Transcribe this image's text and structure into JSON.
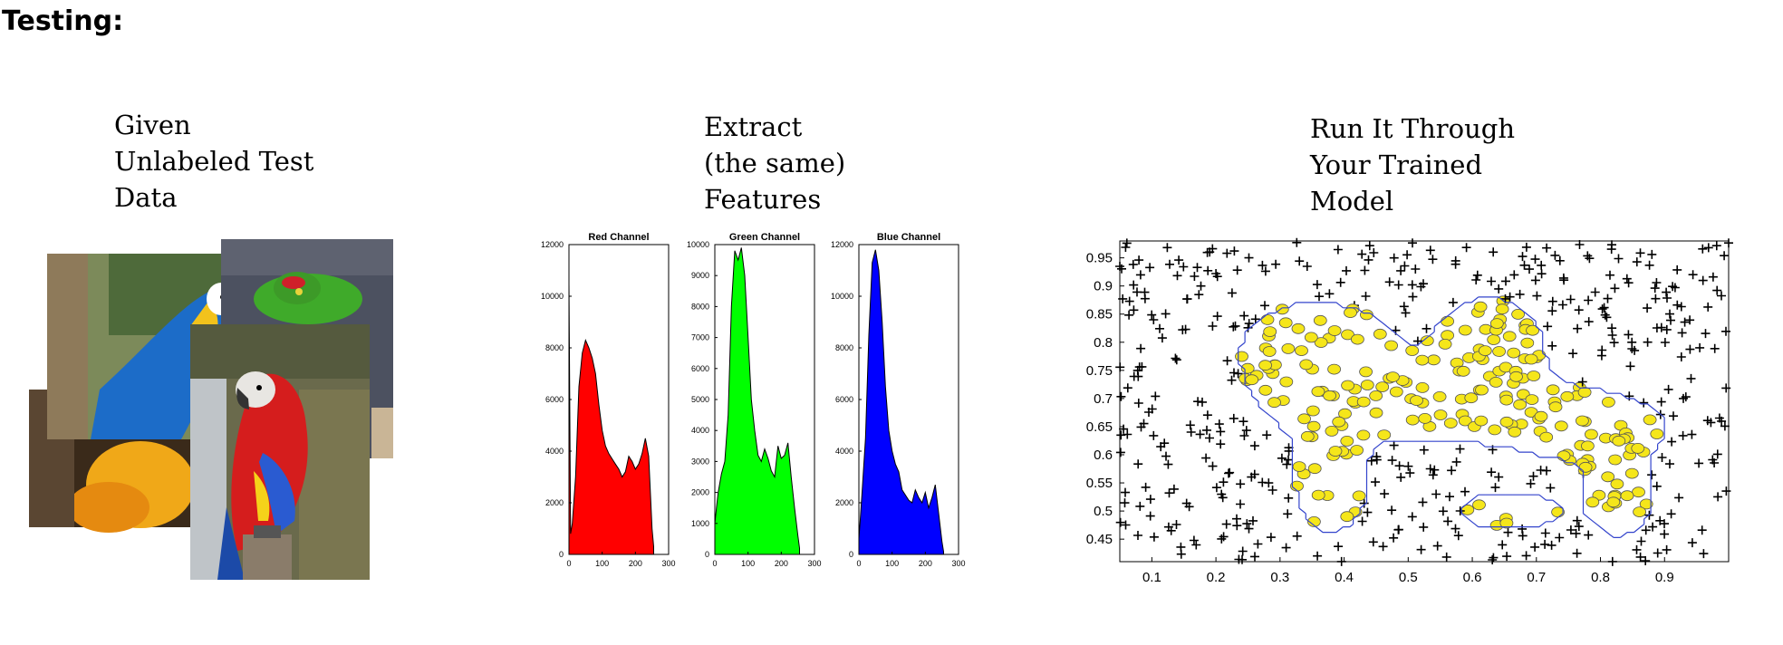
{
  "title": "Testing:",
  "steps": [
    {
      "lines": [
        "Given",
        "Unlabeled Test",
        "Data"
      ]
    },
    {
      "lines": [
        "Extract",
        "(the same)",
        "Features"
      ]
    },
    {
      "lines": [
        "Run It Through",
        "Your Trained",
        "Model"
      ]
    }
  ],
  "photos": {
    "description_icons": [
      "parrot-photo-1",
      "parrot-photo-2",
      "parrot-photo-3",
      "parrot-photo-4"
    ]
  },
  "chart_data": [
    {
      "type": "area",
      "title": "Red Channel",
      "color": "#ff0000",
      "xlim": [
        0,
        300
      ],
      "ylim": [
        0,
        12000
      ],
      "xticks": [
        "0",
        "100",
        "200",
        "300"
      ],
      "yticks": [
        "0",
        "2000",
        "4000",
        "6000",
        "8000",
        "10000",
        "12000"
      ],
      "x": [
        0,
        5,
        10,
        20,
        30,
        40,
        50,
        60,
        70,
        80,
        90,
        100,
        110,
        120,
        130,
        140,
        150,
        160,
        170,
        180,
        190,
        200,
        210,
        220,
        230,
        240,
        250,
        255
      ],
      "y": [
        10500,
        800,
        1200,
        3000,
        6500,
        7800,
        8300,
        8000,
        7600,
        7000,
        5800,
        4800,
        4200,
        3900,
        3700,
        3500,
        3300,
        3000,
        3200,
        3800,
        3600,
        3300,
        3500,
        3900,
        4500,
        3800,
        1000,
        300
      ]
    },
    {
      "type": "area",
      "title": "Green Channel",
      "color": "#00ff00",
      "xlim": [
        0,
        300
      ],
      "ylim": [
        0,
        10000
      ],
      "xticks": [
        "0",
        "100",
        "200",
        "300"
      ],
      "yticks": [
        "0",
        "1000",
        "2000",
        "3000",
        "4000",
        "5000",
        "6000",
        "7000",
        "8000",
        "9000",
        "10000"
      ],
      "x": [
        0,
        5,
        10,
        20,
        30,
        40,
        50,
        60,
        70,
        80,
        90,
        100,
        110,
        120,
        130,
        140,
        150,
        160,
        170,
        180,
        190,
        200,
        210,
        220,
        230,
        240,
        250,
        255
      ],
      "y": [
        1000,
        1500,
        2000,
        2600,
        3000,
        4500,
        8000,
        9800,
        9500,
        9900,
        9000,
        7000,
        5000,
        4000,
        3200,
        3000,
        3400,
        3100,
        2700,
        2500,
        3500,
        3100,
        3200,
        3600,
        2500,
        1500,
        600,
        200
      ]
    },
    {
      "type": "area",
      "title": "Blue Channel",
      "color": "#0000ff",
      "xlim": [
        0,
        300
      ],
      "ylim": [
        0,
        12000
      ],
      "xticks": [
        "0",
        "100",
        "200",
        "300"
      ],
      "yticks": [
        "0",
        "2000",
        "4000",
        "6000",
        "8000",
        "10000",
        "12000"
      ],
      "x": [
        0,
        5,
        10,
        20,
        30,
        40,
        50,
        60,
        70,
        80,
        90,
        100,
        110,
        120,
        130,
        140,
        150,
        160,
        170,
        180,
        190,
        200,
        210,
        220,
        230,
        240,
        250,
        255
      ],
      "y": [
        600,
        1500,
        2500,
        4500,
        8500,
        11300,
        11800,
        11000,
        9000,
        6500,
        4800,
        4000,
        3500,
        3200,
        2500,
        2300,
        2100,
        2000,
        2500,
        2200,
        2000,
        2400,
        1800,
        2200,
        2700,
        1600,
        500,
        100
      ]
    },
    {
      "type": "scatter",
      "xlim": [
        0.05,
        1.0
      ],
      "ylim": [
        0.41,
        0.98
      ],
      "xticks": [
        "0.1",
        "0.2",
        "0.3",
        "0.4",
        "0.5",
        "0.6",
        "0.7",
        "0.8",
        "0.9"
      ],
      "yticks": [
        "0.45",
        "0.5",
        "0.55",
        "0.6",
        "0.65",
        "0.7",
        "0.75",
        "0.8",
        "0.85",
        "0.9",
        "0.95"
      ],
      "series": [
        {
          "marker": "plus",
          "color": "#000000"
        },
        {
          "marker": "circle",
          "color": "#f5e61a"
        }
      ],
      "boundary_color": "#3344cc"
    }
  ]
}
